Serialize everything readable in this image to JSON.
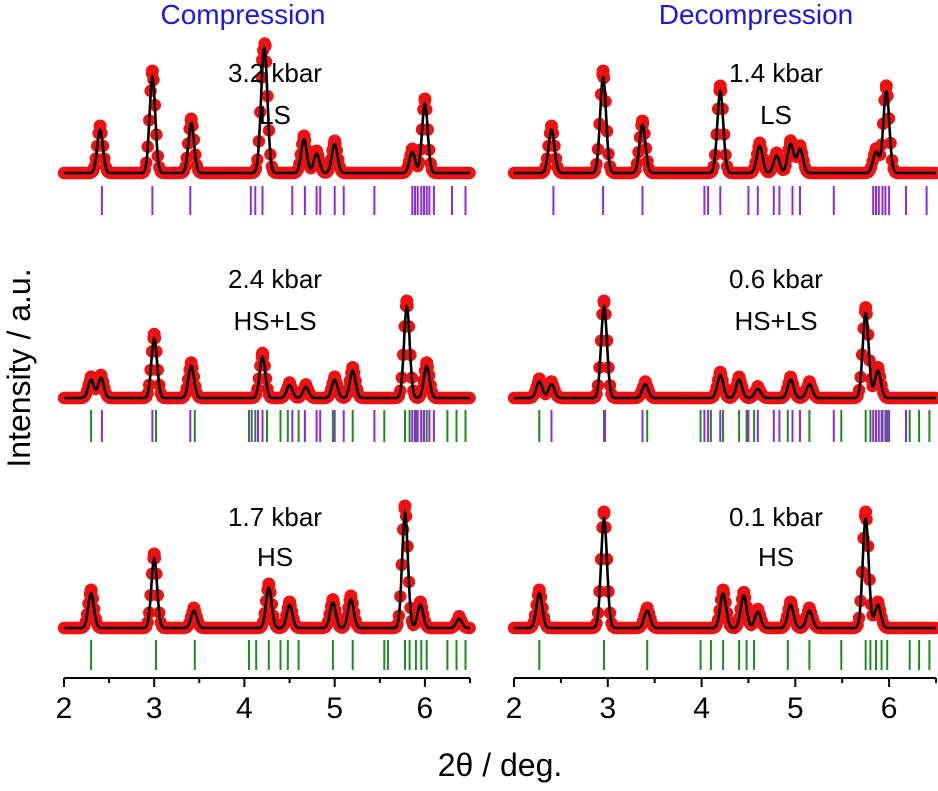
{
  "ylabel": "Intensity / a.u.",
  "xlabel": "2θ / deg.",
  "column_titles": [
    "Compression",
    "Decompression"
  ],
  "colors": {
    "title": "#1a1adb",
    "observed": "#ee1111",
    "calculated": "#000000",
    "ls_ticks": "#8a2be2",
    "hs_ticks": "#1f8a1f"
  },
  "chart_data": [
    {
      "type": "scatter",
      "column": 0,
      "row": 0,
      "pressure": "3.2 kbar",
      "state": "LS",
      "x_range": [
        2,
        6.5
      ],
      "peaks": [
        [
          2.4,
          0.45
        ],
        [
          2.98,
          1.0
        ],
        [
          3.41,
          0.52
        ],
        [
          4.2,
          0.52
        ],
        [
          4.23,
          0.92
        ],
        [
          4.66,
          0.35
        ],
        [
          4.8,
          0.2
        ],
        [
          5.0,
          0.3
        ],
        [
          5.86,
          0.22
        ],
        [
          6.0,
          0.72
        ]
      ],
      "reflections": {
        "LS": [
          2.42,
          2.98,
          3.4,
          4.07,
          4.12,
          4.2,
          4.53,
          4.67,
          4.8,
          4.84,
          5.0,
          5.1,
          5.44,
          5.86,
          5.89,
          5.92,
          5.96,
          5.99,
          6.02,
          6.05,
          6.1,
          6.3,
          6.45
        ]
      }
    },
    {
      "type": "scatter",
      "column": 1,
      "row": 0,
      "pressure": "1.4 kbar",
      "state": "LS",
      "x_range": [
        2,
        6.5
      ],
      "peaks": [
        [
          2.4,
          0.45
        ],
        [
          2.95,
          1.0
        ],
        [
          3.37,
          0.5
        ],
        [
          4.2,
          0.85
        ],
        [
          4.62,
          0.28
        ],
        [
          4.8,
          0.18
        ],
        [
          4.95,
          0.3
        ],
        [
          5.05,
          0.25
        ],
        [
          5.86,
          0.22
        ],
        [
          5.97,
          0.85
        ]
      ],
      "reflections": {
        "LS": [
          2.42,
          2.95,
          3.37,
          4.03,
          4.07,
          4.2,
          4.5,
          4.6,
          4.77,
          4.83,
          4.97,
          5.05,
          5.41,
          5.83,
          5.86,
          5.89,
          5.93,
          5.96,
          6.0,
          6.18,
          6.4
        ]
      }
    },
    {
      "type": "scatter",
      "column": 0,
      "row": 1,
      "pressure": "2.4 kbar",
      "state": "HS+LS",
      "x_range": [
        2,
        6.5
      ],
      "peaks": [
        [
          2.3,
          0.2
        ],
        [
          2.41,
          0.22
        ],
        [
          3.0,
          0.65
        ],
        [
          3.41,
          0.35
        ],
        [
          4.2,
          0.45
        ],
        [
          4.5,
          0.14
        ],
        [
          4.68,
          0.12
        ],
        [
          5.0,
          0.2
        ],
        [
          5.2,
          0.3
        ],
        [
          5.8,
          1.0
        ],
        [
          6.02,
          0.35
        ]
      ],
      "reflections": {
        "HS": [
          2.3,
          3.02,
          3.45,
          4.05,
          4.12,
          4.25,
          4.4,
          4.48,
          4.6,
          4.98,
          5.2,
          5.55,
          5.78,
          5.83,
          5.9,
          5.96,
          6.02,
          6.25,
          6.35,
          6.45
        ],
        "LS": [
          2.42,
          2.98,
          3.4,
          4.08,
          4.15,
          4.2,
          4.53,
          4.67,
          4.8,
          4.84,
          5.0,
          5.1,
          5.44,
          5.86,
          5.89,
          5.92,
          5.96,
          5.99,
          6.05,
          6.1
        ]
      }
    },
    {
      "type": "scatter",
      "column": 1,
      "row": 1,
      "pressure": "0.6 kbar",
      "state": "HS+LS",
      "x_range": [
        2,
        6.5
      ],
      "peaks": [
        [
          2.27,
          0.18
        ],
        [
          2.4,
          0.15
        ],
        [
          2.96,
          1.0
        ],
        [
          3.4,
          0.15
        ],
        [
          4.2,
          0.25
        ],
        [
          4.4,
          0.2
        ],
        [
          4.6,
          0.1
        ],
        [
          4.95,
          0.2
        ],
        [
          5.15,
          0.15
        ],
        [
          5.75,
          0.93
        ],
        [
          5.88,
          0.3
        ]
      ],
      "reflections": {
        "HS": [
          2.27,
          2.96,
          3.42,
          3.99,
          4.1,
          4.23,
          4.4,
          4.48,
          4.56,
          4.92,
          5.15,
          5.49,
          5.75,
          5.8,
          5.86,
          5.92,
          5.98,
          6.22,
          6.32,
          6.43
        ],
        "LS": [
          2.4,
          2.97,
          3.37,
          4.03,
          4.07,
          4.2,
          4.5,
          4.6,
          4.77,
          4.83,
          4.97,
          5.05,
          5.41,
          5.83,
          5.86,
          5.89,
          5.93,
          5.96,
          6.0,
          6.18
        ]
      }
    },
    {
      "type": "scatter",
      "column": 0,
      "row": 2,
      "pressure": "1.7 kbar",
      "state": "HS",
      "x_range": [
        2,
        6.5
      ],
      "peaks": [
        [
          2.3,
          0.3
        ],
        [
          3.0,
          0.6
        ],
        [
          3.44,
          0.15
        ],
        [
          4.27,
          0.35
        ],
        [
          4.5,
          0.2
        ],
        [
          4.98,
          0.22
        ],
        [
          5.18,
          0.25
        ],
        [
          5.78,
          1.0
        ],
        [
          5.95,
          0.2
        ],
        [
          6.38,
          0.08
        ]
      ],
      "reflections": {
        "HS": [
          2.3,
          3.02,
          3.45,
          4.05,
          4.13,
          4.27,
          4.4,
          4.48,
          4.6,
          4.98,
          5.2,
          5.55,
          5.59,
          5.78,
          5.83,
          5.9,
          5.96,
          6.02,
          6.25,
          6.35,
          6.45
        ]
      }
    },
    {
      "type": "scatter",
      "column": 1,
      "row": 2,
      "pressure": "0.1 kbar",
      "state": "HS",
      "x_range": [
        2,
        6.5
      ],
      "peaks": [
        [
          2.27,
          0.3
        ],
        [
          2.96,
          0.95
        ],
        [
          3.42,
          0.15
        ],
        [
          4.23,
          0.3
        ],
        [
          4.45,
          0.28
        ],
        [
          4.6,
          0.14
        ],
        [
          4.95,
          0.2
        ],
        [
          5.15,
          0.15
        ],
        [
          5.75,
          0.95
        ],
        [
          5.88,
          0.2
        ]
      ],
      "reflections": {
        "HS": [
          2.27,
          2.96,
          3.42,
          3.99,
          4.1,
          4.23,
          4.4,
          4.48,
          4.56,
          4.92,
          5.15,
          5.49,
          5.75,
          5.8,
          5.86,
          5.92,
          5.98,
          6.22,
          6.32,
          6.43
        ]
      }
    }
  ],
  "x_ticks": [
    "2",
    "3",
    "4",
    "5",
    "6"
  ]
}
